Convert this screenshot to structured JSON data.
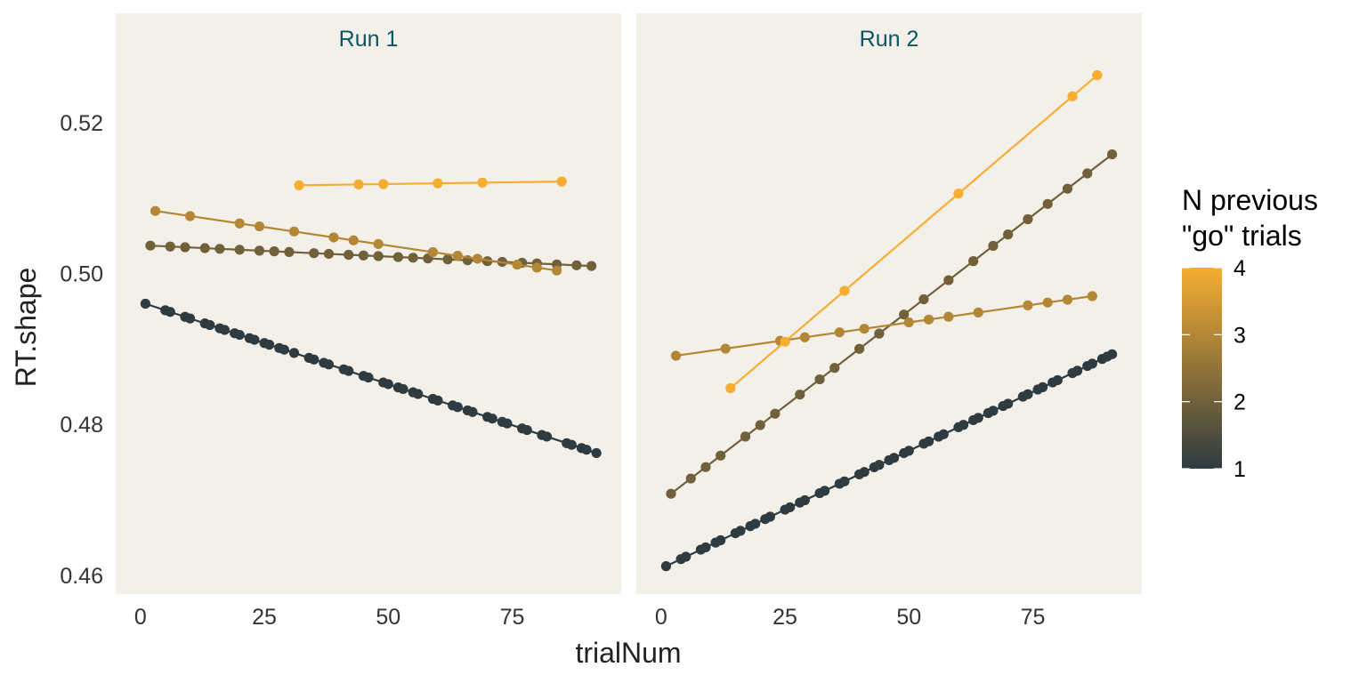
{
  "colors": {
    "panel_bg": "#F3F0EA",
    "strip_text": "#0B5563",
    "low": "#2E3B40",
    "high": "#F6AD31"
  },
  "chart_data": {
    "type": "line",
    "xlabel": "trialNum",
    "ylabel": "RT.shape",
    "xlim": [
      -5,
      97
    ],
    "ylim": [
      0.4575,
      0.5345
    ],
    "x_ticks": [
      0,
      25,
      50,
      75
    ],
    "y_ticks": [
      0.46,
      0.48,
      0.5,
      0.52
    ],
    "y_tick_labels": [
      "0.46",
      "0.48",
      "0.50",
      "0.52"
    ],
    "grid": false,
    "legend": {
      "title_lines": [
        "N previous",
        "\"go\" trials"
      ],
      "type": "colorbar",
      "placement": "right",
      "range": [
        1,
        4
      ],
      "labels": [
        "1",
        "2",
        "3",
        "4"
      ]
    },
    "panels": [
      {
        "name": "Run 1",
        "series": [
          {
            "n_prev": 1,
            "x_start": 1,
            "x_end": 92,
            "y_start": 0.496,
            "y_end": 0.4762,
            "points": [
              1,
              5,
              6,
              9,
              10,
              13,
              14,
              16,
              17,
              19,
              20,
              22,
              23,
              25,
              26,
              28,
              29,
              31,
              34,
              35,
              37,
              38,
              41,
              42,
              45,
              46,
              49,
              50,
              52,
              53,
              55,
              56,
              59,
              60,
              63,
              64,
              66,
              67,
              70,
              71,
              73,
              74,
              77,
              78,
              81,
              82,
              86,
              87,
              89,
              90,
              92
            ]
          },
          {
            "n_prev": 2,
            "x_start": 2,
            "x_end": 91,
            "y_start": 0.5037,
            "y_end": 0.501,
            "points": [
              2,
              6,
              9,
              13,
              16,
              20,
              24,
              27,
              30,
              35,
              38,
              42,
              45,
              48,
              52,
              55,
              58,
              62,
              66,
              70,
              73,
              77,
              80,
              84,
              88,
              91
            ]
          },
          {
            "n_prev": 3,
            "x_start": 3,
            "x_end": 84,
            "y_start": 0.5083,
            "y_end": 0.5004,
            "points": [
              3,
              10,
              20,
              24,
              31,
              39,
              43,
              48,
              59,
              64,
              68,
              76,
              80,
              84
            ]
          },
          {
            "n_prev": 4,
            "x_start": 32,
            "x_end": 85,
            "y_start": 0.5117,
            "y_end": 0.5122,
            "points": [
              32,
              44,
              49,
              60,
              69,
              85
            ]
          }
        ]
      },
      {
        "name": "Run 2",
        "series": [
          {
            "n_prev": 1,
            "x_start": 1,
            "x_end": 91,
            "y_start": 0.4612,
            "y_end": 0.4893,
            "points": [
              1,
              4,
              5,
              8,
              9,
              11,
              12,
              15,
              16,
              18,
              19,
              21,
              22,
              25,
              26,
              28,
              29,
              32,
              33,
              36,
              37,
              40,
              41,
              43,
              44,
              46,
              47,
              49,
              50,
              53,
              54,
              56,
              57,
              60,
              61,
              63,
              64,
              66,
              67,
              69,
              70,
              73,
              74,
              76,
              77,
              79,
              80,
              83,
              84,
              86,
              87,
              89,
              90,
              91
            ]
          },
          {
            "n_prev": 2,
            "x_start": 2,
            "x_end": 91,
            "y_start": 0.4708,
            "y_end": 0.5158,
            "points": [
              2,
              6,
              9,
              12,
              17,
              20,
              23,
              28,
              32,
              35,
              40,
              44,
              49,
              53,
              58,
              63,
              67,
              70,
              74,
              78,
              82,
              86,
              91
            ]
          },
          {
            "n_prev": 3,
            "x_start": 3,
            "x_end": 87,
            "y_start": 0.4891,
            "y_end": 0.497,
            "points": [
              3,
              13,
              24,
              29,
              36,
              41,
              50,
              54,
              58,
              64,
              74,
              78,
              82,
              87
            ]
          },
          {
            "n_prev": 4,
            "x_start": 14,
            "x_end": 88,
            "y_start": 0.4848,
            "y_end": 0.5263,
            "points": [
              14,
              25,
              37,
              60,
              83,
              88
            ]
          }
        ]
      }
    ]
  }
}
